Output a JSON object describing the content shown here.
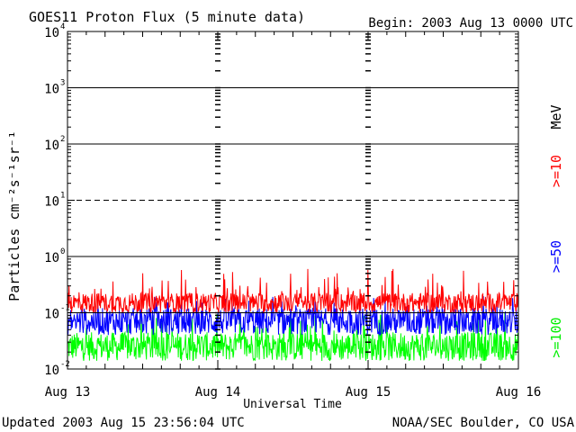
{
  "chart_data": {
    "type": "line",
    "title": "GOES11 Proton Flux (5 minute data)",
    "begin_label": "Begin: 2003 Aug 13 0000 UTC",
    "ylabel": "Particles cm⁻²s⁻¹sr⁻¹",
    "xlabel": "Universal Time",
    "y_scale": "log",
    "ylim": [
      0.01,
      10000
    ],
    "xlim": [
      0,
      72
    ],
    "x_unit": "hours since Aug 13 0000 UTC",
    "y_tick_labels": [
      {
        "base": "10",
        "exp": "4",
        "value": 10000
      },
      {
        "base": "10",
        "exp": "3",
        "value": 1000
      },
      {
        "base": "10",
        "exp": "2",
        "value": 100
      },
      {
        "base": "10",
        "exp": "1",
        "value": 10
      },
      {
        "base": "10",
        "exp": "0",
        "value": 1
      },
      {
        "base": "10",
        "exp": "-1",
        "value": 0.1
      },
      {
        "base": "10",
        "exp": "-2",
        "value": 0.01
      }
    ],
    "x_tick_labels": [
      {
        "label": "Aug 13",
        "value": 0
      },
      {
        "label": "Aug 14",
        "value": 24
      },
      {
        "label": "Aug 15",
        "value": 48
      },
      {
        "label": "Aug 16",
        "value": 72
      }
    ],
    "threshold_line": {
      "value": 10,
      "style": "dashed"
    },
    "unit_label": "MeV",
    "series": [
      {
        "name": ">=10",
        "color": "#ff0000",
        "typical": 0.15,
        "min": 0.09,
        "max": 0.6
      },
      {
        "name": ">=50",
        "color": "#0000ff",
        "typical": 0.07,
        "min": 0.035,
        "max": 0.2
      },
      {
        "name": ">=100",
        "color": "#00ff00",
        "typical": 0.025,
        "min": 0.012,
        "max": 0.1
      }
    ],
    "grid": true
  },
  "footer": {
    "updated": "Updated 2003 Aug 15 23:56:04 UTC",
    "source": "NOAA/SEC Boulder, CO USA"
  }
}
